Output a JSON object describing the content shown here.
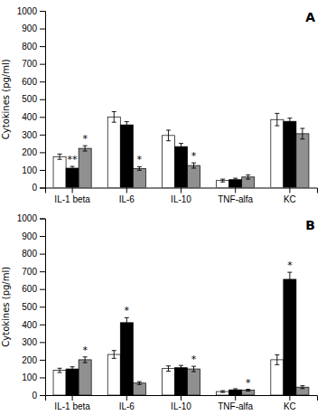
{
  "chart_data": [
    {
      "type": "bar",
      "title": "A",
      "categories": [
        "IL-1 beta",
        "IL-6",
        "IL-10",
        "TNF-alfa",
        "KC"
      ],
      "series": [
        {
          "color": "white",
          "values": [
            175,
            400,
            295,
            40,
            385
          ],
          "errors": [
            15,
            30,
            30,
            8,
            35
          ]
        },
        {
          "color": "black",
          "values": [
            110,
            355,
            232,
            45,
            375
          ],
          "errors": [
            10,
            18,
            18,
            8,
            18
          ]
        },
        {
          "color": "#909090",
          "values": [
            222,
            108,
            125,
            60,
            305
          ],
          "errors": [
            15,
            10,
            15,
            12,
            30
          ]
        }
      ],
      "annotations": [
        {
          "series": 1,
          "category": 0,
          "text": "**"
        },
        {
          "series": 2,
          "category": 0,
          "text": "*"
        },
        {
          "series": 2,
          "category": 1,
          "text": "*"
        },
        {
          "series": 2,
          "category": 2,
          "text": "*"
        }
      ],
      "ylabel": "Cytokines (pg/ml)",
      "ylim": [
        0,
        1000
      ],
      "yticks": [
        0,
        100,
        200,
        300,
        400,
        500,
        600,
        700,
        800,
        900,
        1000
      ],
      "grid": false
    },
    {
      "type": "bar",
      "title": "B",
      "categories": [
        "IL-1 beta",
        "IL-6",
        "IL-10",
        "TNF-alfa",
        "KC"
      ],
      "series": [
        {
          "color": "white",
          "values": [
            140,
            230,
            150,
            20,
            200
          ],
          "errors": [
            12,
            22,
            15,
            5,
            28
          ]
        },
        {
          "color": "black",
          "values": [
            148,
            410,
            155,
            30,
            655
          ],
          "errors": [
            12,
            28,
            13,
            6,
            40
          ]
        },
        {
          "color": "#909090",
          "values": [
            200,
            68,
            148,
            28,
            45
          ],
          "errors": [
            16,
            8,
            15,
            5,
            8
          ]
        }
      ],
      "annotations": [
        {
          "series": 2,
          "category": 0,
          "text": "*"
        },
        {
          "series": 1,
          "category": 1,
          "text": "*"
        },
        {
          "series": 2,
          "category": 2,
          "text": "*"
        },
        {
          "series": 2,
          "category": 3,
          "text": "*"
        },
        {
          "series": 1,
          "category": 4,
          "text": "*"
        }
      ],
      "ylabel": "Cytokines (pg/ml)",
      "ylim": [
        0,
        1000
      ],
      "yticks": [
        0,
        100,
        200,
        300,
        400,
        500,
        600,
        700,
        800,
        900,
        1000
      ],
      "grid": false
    }
  ]
}
